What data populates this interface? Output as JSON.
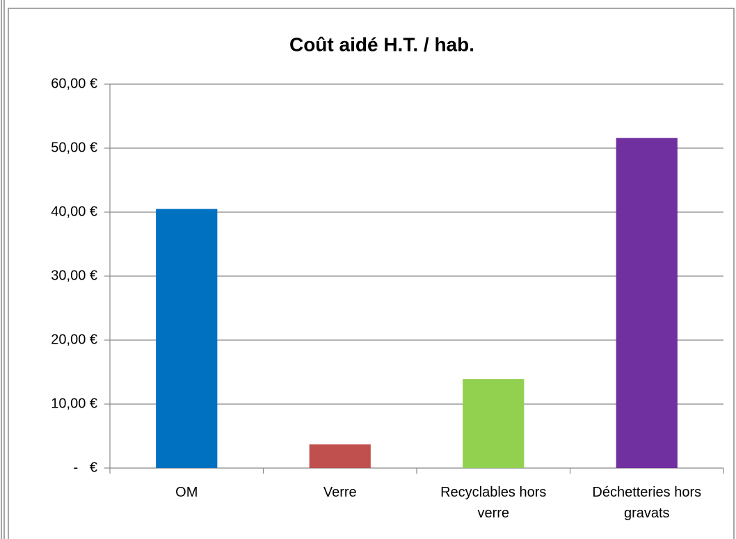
{
  "chart_data": {
    "type": "bar",
    "title": "Coût aidé H.T. / hab.",
    "categories": [
      "OM",
      "Verre",
      "Recyclables hors verre",
      "Déchetteries hors gravats"
    ],
    "values": [
      40.5,
      3.7,
      13.9,
      51.6
    ],
    "colors": [
      "#0070c0",
      "#c0504d",
      "#92d050",
      "#7030a0"
    ],
    "ylim": [
      0,
      60
    ],
    "yticks": [
      {
        "value": 0,
        "label": "-   €"
      },
      {
        "value": 10,
        "label": "10,00 €"
      },
      {
        "value": 20,
        "label": "20,00 €"
      },
      {
        "value": 30,
        "label": "30,00 €"
      },
      {
        "value": 40,
        "label": "40,00 €"
      },
      {
        "value": 50,
        "label": "50,00 €"
      },
      {
        "value": 60,
        "label": "60,00 €"
      }
    ],
    "grid": true
  }
}
